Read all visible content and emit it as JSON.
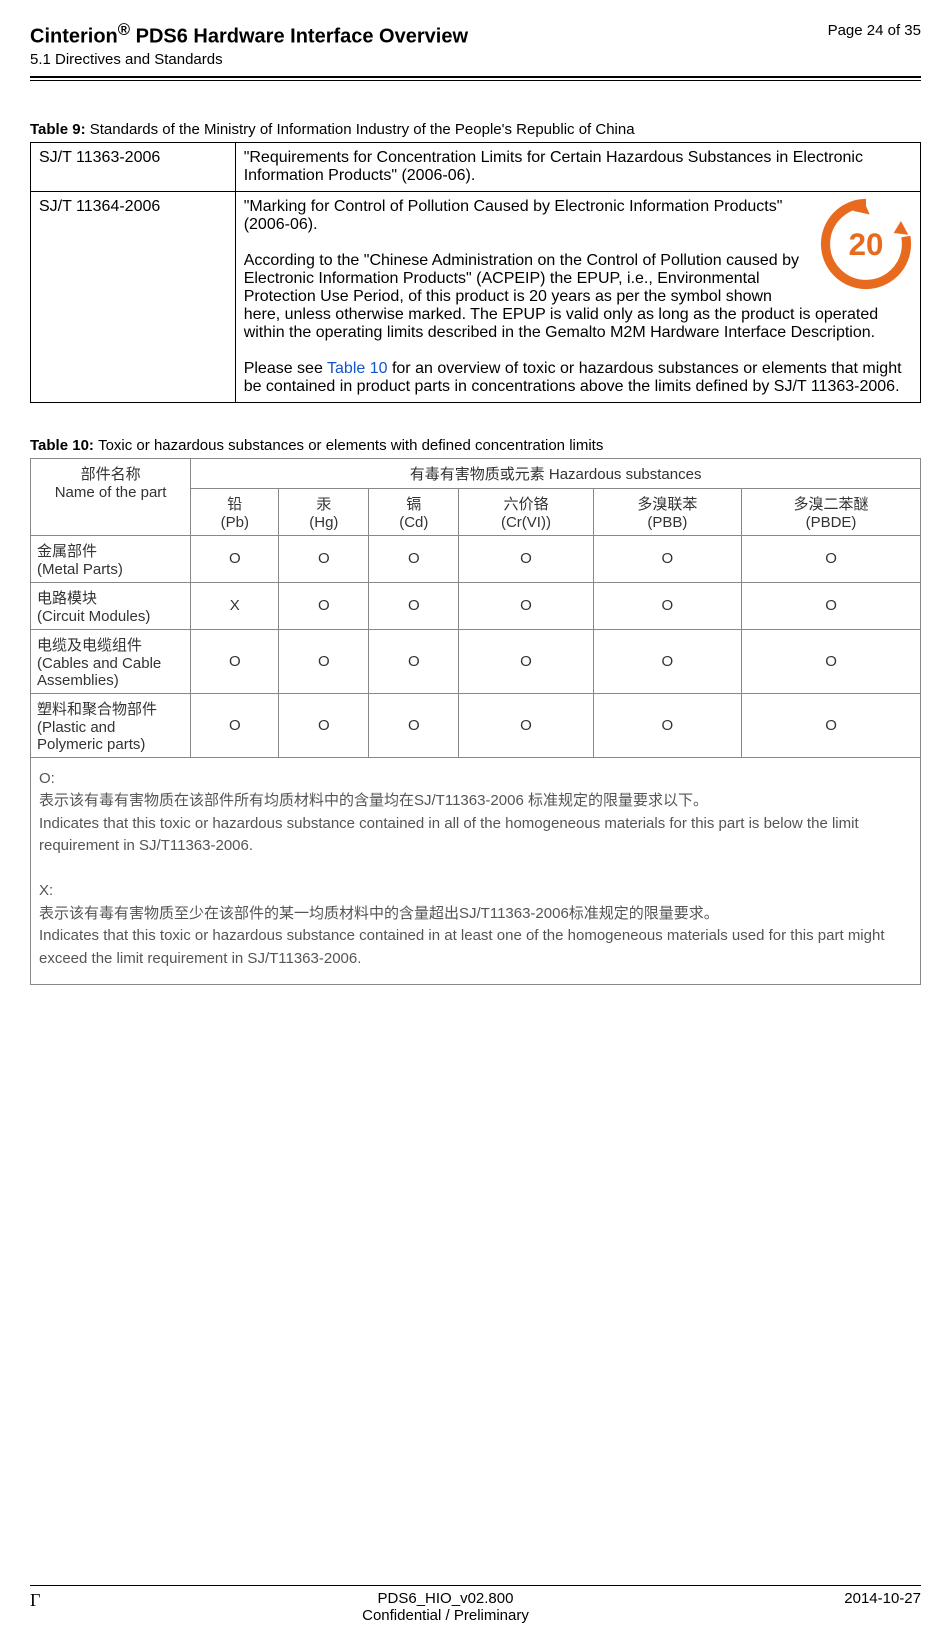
{
  "header": {
    "title_prefix": "Cinterion",
    "title_suffix": " PDS6 Hardware Interface Overview",
    "subtitle": "5.1 Directives and Standards",
    "page_label": "Page 24 of 35"
  },
  "table9": {
    "caption_prefix": "Table 9:  ",
    "caption_text": "Standards of the Ministry of Information Industry of the People's Republic of China",
    "rows": [
      {
        "std": "SJ/T 11363-2006",
        "desc": "\"Requirements for Concentration Limits for Certain Hazardous Substances in Electronic Information Products\" (2006-06)."
      },
      {
        "std": "SJ/T 11364-2006",
        "desc_p1": "\"Marking for Control of Pollution Caused by Electronic Information Products\" (2006-06).",
        "desc_p2": "According to the \"Chinese Administration on the Control of Pollution caused by Electronic Information Products\" (ACPEIP) the EPUP, i.e., Environmental Protection Use Period, of this product is 20 years as per the symbol shown here, unless otherwise marked. The EPUP is valid only as long as the product is operated within the operating limits described in the Gemalto M2M Hardware Interface Description.",
        "desc_p3_a": "Please see ",
        "desc_p3_link": "Table 10",
        "desc_p3_b": " for an overview of toxic or hazardous substances or elements that might be contained in product parts in concentrations above the limits defined by SJ/T 11363-2006."
      }
    ],
    "icon": {
      "outer_color": "#e86a1e",
      "inner_text": "20",
      "size": 90
    }
  },
  "table10": {
    "caption_prefix": "Table 10:  ",
    "caption_text": "Toxic or hazardous substances or elements with defined concentration limits",
    "header_part_cn": "部件名称",
    "header_part_en": "Name of the part",
    "header_haz_cn": "有毒有害物质或元素 Hazardous substances",
    "cols": [
      {
        "cn": "铅",
        "sym": "(Pb)"
      },
      {
        "cn": "汞",
        "sym": "(Hg)"
      },
      {
        "cn": "镉",
        "sym": "(Cd)"
      },
      {
        "cn": "六价铬",
        "sym": "(Cr(VI))"
      },
      {
        "cn": "多溴联苯",
        "sym": "(PBB)"
      },
      {
        "cn": "多溴二苯醚",
        "sym": "(PBDE)"
      }
    ],
    "rows": [
      {
        "part_cn": "金属部件",
        "part_en": "(Metal Parts)",
        "vals": [
          "O",
          "O",
          "O",
          "O",
          "O",
          "O"
        ]
      },
      {
        "part_cn": "电路模块",
        "part_en": "(Circuit Modules)",
        "vals": [
          "X",
          "O",
          "O",
          "O",
          "O",
          "O"
        ]
      },
      {
        "part_cn": "电缆及电缆组件",
        "part_en": "(Cables and Cable Assemblies)",
        "vals": [
          "O",
          "O",
          "O",
          "O",
          "O",
          "O"
        ]
      },
      {
        "part_cn": "塑料和聚合物部件",
        "part_en": "(Plastic and Polymeric parts)",
        "vals": [
          "O",
          "O",
          "O",
          "O",
          "O",
          "O"
        ]
      }
    ],
    "legend": {
      "o_label": "O:",
      "o_cn": "表示该有毒有害物质在该部件所有均质材料中的含量均在SJ/T11363-2006 标准规定的限量要求以下。",
      "o_en": "Indicates that this toxic or hazardous substance contained in all of the homogeneous materials for this part is below the limit requirement in SJ/T11363-2006.",
      "x_label": "X:",
      "x_cn": "表示该有毒有害物质至少在该部件的某一均质材料中的含量超出SJ/T11363-2006标准规定的限量要求。",
      "x_en": "Indicates that this toxic or hazardous substance contained in at least one of the homogeneous materials used for this part might exceed the limit requirement in SJ/T11363-2006."
    }
  },
  "footer": {
    "left": "Γ",
    "center1": "PDS6_HIO_v02.800",
    "center2": "Confidential / Preliminary",
    "right": "2014-10-27"
  }
}
